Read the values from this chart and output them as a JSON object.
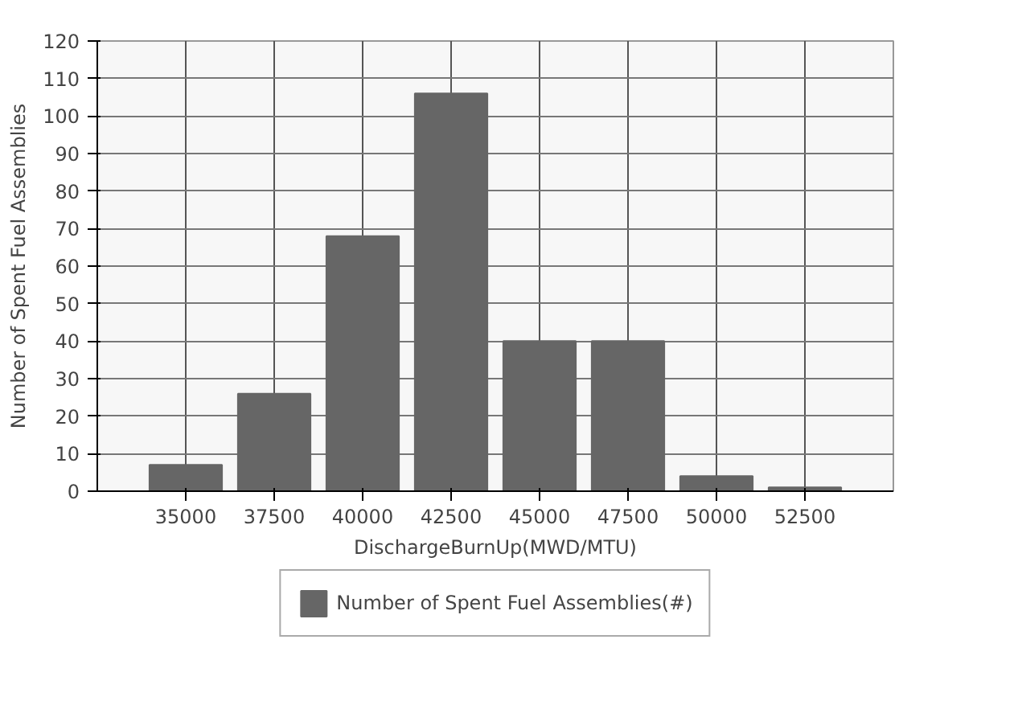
{
  "chart_data": {
    "type": "bar",
    "xlabel": "DischargeBurnUp(MWD/MTU)",
    "ylabel": "Number of Spent Fuel Assemblies",
    "categories": [
      "35000",
      "37500",
      "40000",
      "42500",
      "45000",
      "47500",
      "50000",
      "52500"
    ],
    "series": [
      {
        "name": "Number of Spent Fuel Assemblies(#)",
        "color": "#666666",
        "values": [
          7,
          26,
          68,
          106,
          40,
          40,
          4,
          1
        ]
      }
    ],
    "ylim": [
      0,
      120
    ],
    "yticks": [
      0,
      10,
      20,
      30,
      40,
      50,
      60,
      70,
      80,
      90,
      100,
      110,
      120
    ],
    "grid": true,
    "legend": "bottom"
  }
}
